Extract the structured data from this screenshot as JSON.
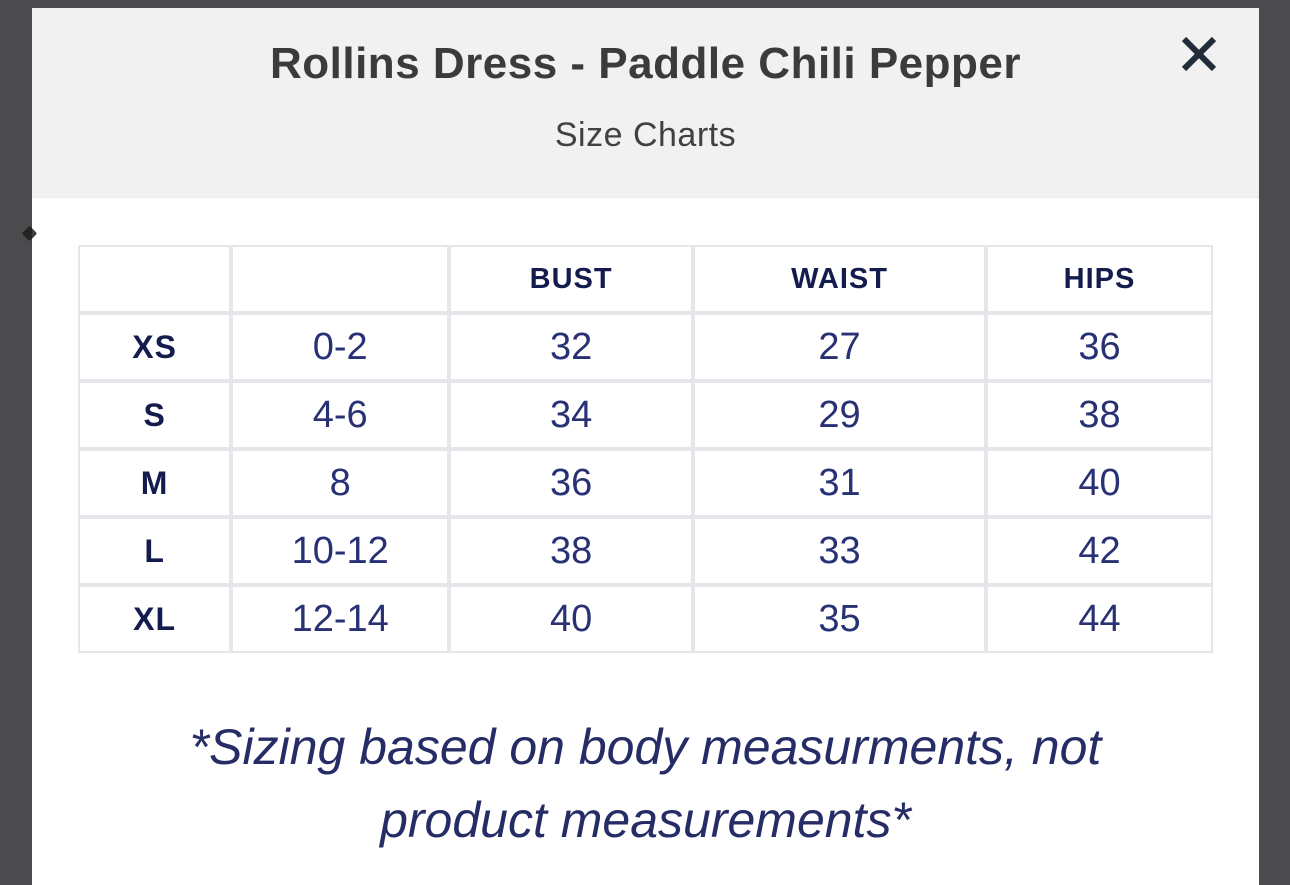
{
  "modal": {
    "title": "Rollins Dress - Paddle Chili Pepper",
    "subtitle": "Size Charts"
  },
  "size_chart": {
    "columns": [
      "",
      "",
      "BUST",
      "WAIST",
      "HIPS"
    ],
    "rows": [
      [
        "XS",
        "0-2",
        "32",
        "27",
        "36"
      ],
      [
        "S",
        "4-6",
        "34",
        "29",
        "38"
      ],
      [
        "M",
        "8",
        "36",
        "31",
        "40"
      ],
      [
        "L",
        "10-12",
        "38",
        "33",
        "42"
      ],
      [
        "XL",
        "12-14",
        "40",
        "35",
        "44"
      ]
    ],
    "note": "*Sizing based on body measurments, not product measurements*"
  },
  "colors": {
    "overlay_background": "#4b4b4d",
    "modal_header_background": "#f1f1f2",
    "table_border": "#e6e6ea",
    "navy_value_text": "#283173",
    "navy_bold_text": "#141b4d",
    "note_text": "#262d66",
    "title_text": "#3b3b3d",
    "close_icon": "#212c38"
  }
}
